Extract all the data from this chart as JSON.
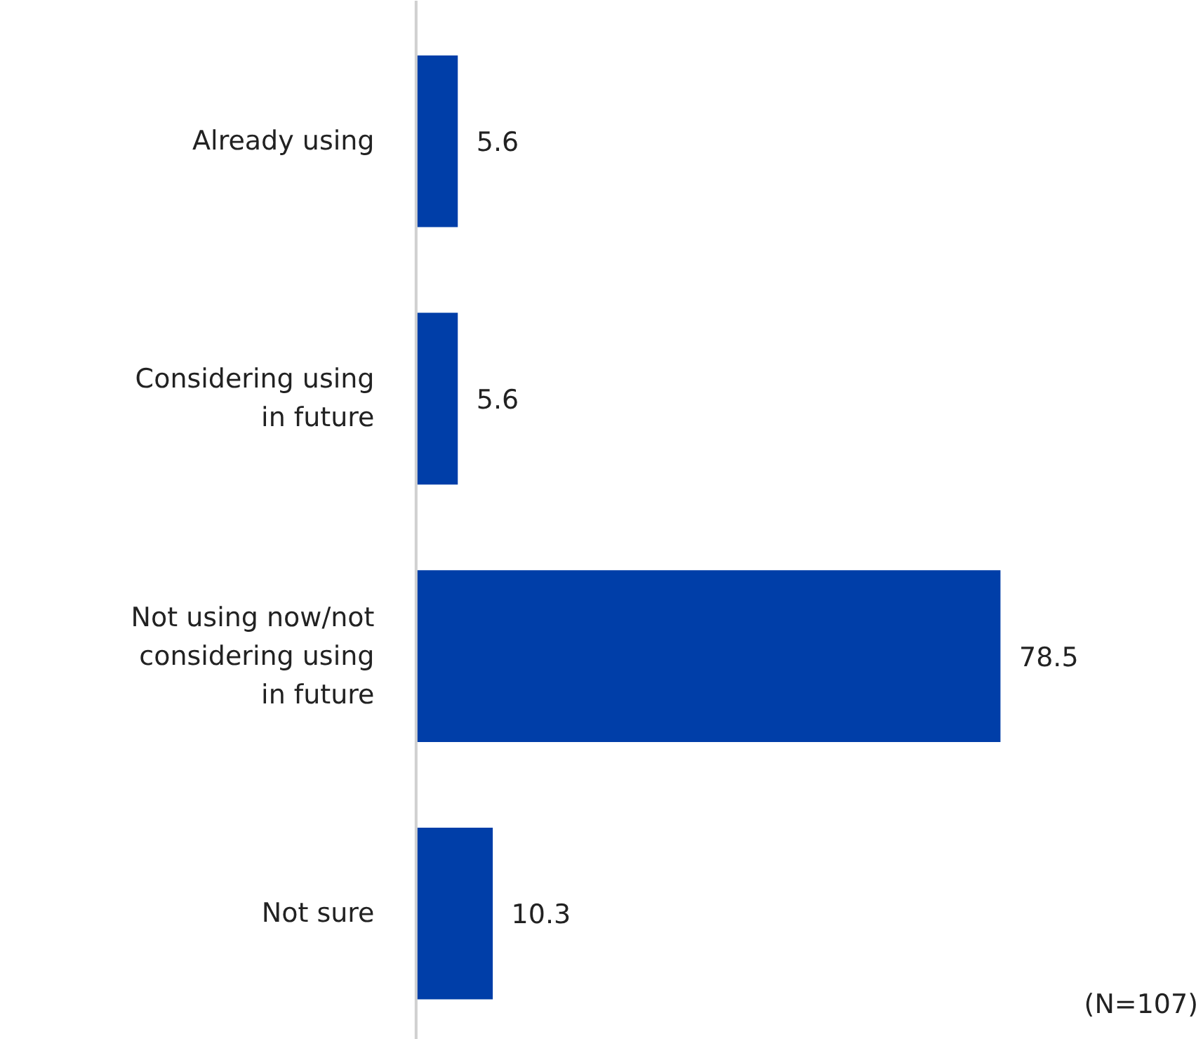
{
  "chart_data": {
    "type": "bar",
    "orientation": "horizontal",
    "categories": [
      "Already using",
      "Considering using in future",
      "Not using now/not considering using in future",
      "Not sure"
    ],
    "values": [
      5.6,
      5.6,
      78.5,
      10.3
    ],
    "color": "#003ea8",
    "data_labels": true,
    "annotations": [
      "(N=107)"
    ]
  }
}
